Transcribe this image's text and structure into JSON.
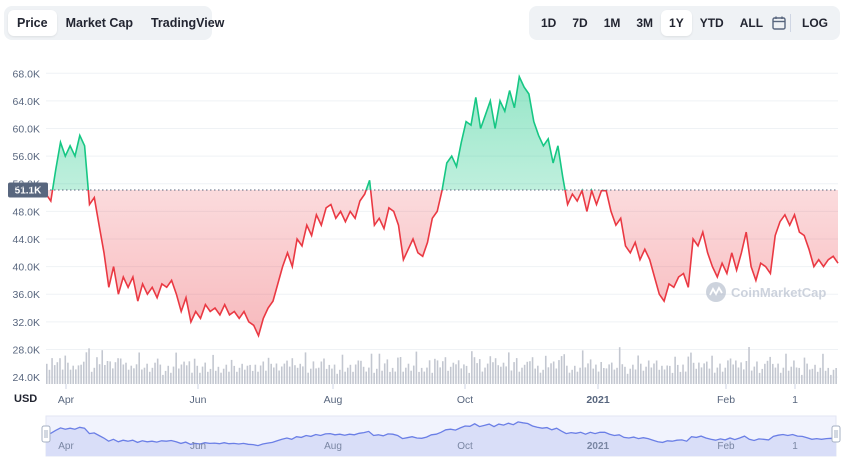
{
  "tabs": [
    {
      "label": "Price",
      "active": true
    },
    {
      "label": "Market Cap",
      "active": false
    },
    {
      "label": "TradingView",
      "active": false
    }
  ],
  "ranges": [
    {
      "label": "1D",
      "active": false
    },
    {
      "label": "7D",
      "active": false
    },
    {
      "label": "1M",
      "active": false
    },
    {
      "label": "3M",
      "active": false
    },
    {
      "label": "1Y",
      "active": true
    },
    {
      "label": "YTD",
      "active": false
    },
    {
      "label": "ALL",
      "active": false
    }
  ],
  "calendar_icon": "calendar-icon",
  "log_label": "LOG",
  "watermark": "CoinMarketCap",
  "colors": {
    "up": "#16c784",
    "down": "#ea3943",
    "volume": "#c3c7d0",
    "navigator_line": "#6b7fe6",
    "navigator_fill": "#d9def8"
  },
  "chart_data": {
    "type": "area",
    "y_unit": "USD",
    "baseline_label": "51.1K",
    "baseline": 51100,
    "ylim": [
      23000,
      70500
    ],
    "y_ticks": [
      "24.0K",
      "28.0K",
      "32.0K",
      "36.0K",
      "40.0K",
      "44.0K",
      "48.0K",
      "52.0K",
      "56.0K",
      "60.0K",
      "64.0K",
      "68.0K"
    ],
    "x_ticks": [
      "Apr",
      "Jun",
      "Aug",
      "Oct",
      "2021",
      "Feb",
      "1"
    ],
    "navigator_ticks": [
      "Apr",
      "Jun",
      "Aug",
      "Oct",
      "2021",
      "Feb",
      "1"
    ],
    "grid": true,
    "price": [
      50500,
      49500,
      54000,
      58000,
      56000,
      57500,
      56000,
      59000,
      57500,
      49000,
      50000,
      46000,
      42000,
      37000,
      40000,
      36000,
      38500,
      37000,
      38500,
      35000,
      37500,
      36000,
      37000,
      35500,
      37500,
      37000,
      38000,
      36000,
      33500,
      35500,
      32000,
      33500,
      32500,
      34500,
      33500,
      34000,
      33000,
      34500,
      33000,
      33500,
      32500,
      33500,
      32000,
      31500,
      30000,
      32500,
      34000,
      35000,
      37500,
      40000,
      42000,
      40000,
      44000,
      43000,
      46000,
      44500,
      47500,
      46000,
      48500,
      49000,
      47000,
      48000,
      46500,
      48000,
      47000,
      49500,
      50500,
      52500,
      46000,
      47000,
      45500,
      48500,
      48000,
      46000,
      41000,
      42500,
      44000,
      42000,
      41500,
      43500,
      47000,
      48000,
      51000,
      55000,
      56000,
      54500,
      58000,
      61000,
      60500,
      64500,
      60000,
      62000,
      64000,
      60000,
      64000,
      62500,
      65500,
      63000,
      67500,
      66000,
      65000,
      61000,
      59000,
      57500,
      58500,
      55000,
      57500,
      53000,
      49000,
      50500,
      49500,
      51000,
      48000,
      51000,
      49000,
      51000,
      51000,
      48000,
      46000,
      47000,
      43000,
      42000,
      43500,
      41000,
      42500,
      41000,
      38500,
      36000,
      35000,
      37500,
      37000,
      38500,
      39000,
      37000,
      44000,
      43000,
      45000,
      42000,
      40000,
      38500,
      40500,
      39000,
      42000,
      39500,
      42000,
      45000,
      40000,
      38000,
      40500,
      40000,
      39000,
      44500,
      46500,
      47500,
      46000,
      47500,
      45000,
      44500,
      42500,
      40000,
      41000,
      40000,
      41000,
      41500,
      40500
    ]
  }
}
